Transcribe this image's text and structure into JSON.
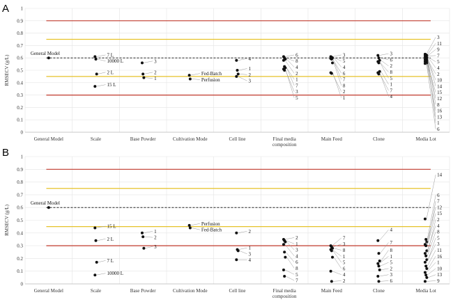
{
  "panel_labels": [
    "A",
    "B"
  ],
  "chart_data": [
    {
      "type": "scatter",
      "panel": "A",
      "ylabel": "RMSECV (g/L)",
      "ylim": [
        0,
        1
      ],
      "yticks": [
        "0",
        "0.1",
        "0.2",
        "0.3",
        "0.4",
        "0.5",
        "0.6",
        "0.7",
        "0.8",
        "0.9",
        "1"
      ],
      "categories": [
        "General Model",
        "Scale",
        "Base Powder",
        "Cultivation Mode",
        "Cell line",
        "Final media composition",
        "Main Feed",
        "Clone",
        "Media Lot"
      ],
      "reference_lines": [
        {
          "y": 0.9,
          "color": "#c0392b"
        },
        {
          "y": 0.75,
          "color": "#e6c229"
        },
        {
          "y": 0.45,
          "color": "#e6c229"
        },
        {
          "y": 0.3,
          "color": "#c0392b"
        },
        {
          "y": 0.6,
          "color": "#222222",
          "dashed": true,
          "label": "General Model"
        }
      ],
      "points": [
        {
          "cat": 0,
          "y": 0.6,
          "label": ""
        },
        {
          "cat": 1,
          "y": 0.61,
          "label": "7 L"
        },
        {
          "cat": 1,
          "y": 0.59,
          "label": "10000 L"
        },
        {
          "cat": 1,
          "y": 0.47,
          "label": "2 L"
        },
        {
          "cat": 1,
          "y": 0.37,
          "label": "15 L"
        },
        {
          "cat": 2,
          "y": 0.56,
          "label": "3"
        },
        {
          "cat": 2,
          "y": 0.47,
          "label": "2"
        },
        {
          "cat": 2,
          "y": 0.44,
          "label": "1"
        },
        {
          "cat": 3,
          "y": 0.46,
          "label": "Fed-Batch"
        },
        {
          "cat": 3,
          "y": 0.43,
          "label": "Perfusion"
        },
        {
          "cat": 4,
          "y": 0.58,
          "label": "4"
        },
        {
          "cat": 4,
          "y": 0.5,
          "label": "1"
        },
        {
          "cat": 4,
          "y": 0.47,
          "label": "2"
        },
        {
          "cat": 4,
          "y": 0.45,
          "label": "3"
        },
        {
          "cat": 5,
          "y": 0.61,
          "label": "6"
        },
        {
          "cat": 5,
          "y": 0.6,
          "label": "8"
        },
        {
          "cat": 5,
          "y": 0.59,
          "label": "4"
        },
        {
          "cat": 5,
          "y": 0.58,
          "label": "2"
        },
        {
          "cat": 5,
          "y": 0.53,
          "label": "1"
        },
        {
          "cat": 5,
          "y": 0.52,
          "label": "7"
        },
        {
          "cat": 5,
          "y": 0.51,
          "label": "3"
        },
        {
          "cat": 5,
          "y": 0.5,
          "label": "5"
        },
        {
          "cat": 6,
          "y": 0.61,
          "label": "3"
        },
        {
          "cat": 6,
          "y": 0.605,
          "label": "5"
        },
        {
          "cat": 6,
          "y": 0.6,
          "label": "4"
        },
        {
          "cat": 6,
          "y": 0.595,
          "label": "6"
        },
        {
          "cat": 6,
          "y": 0.59,
          "label": "7"
        },
        {
          "cat": 6,
          "y": 0.56,
          "label": "8"
        },
        {
          "cat": 6,
          "y": 0.48,
          "label": "2"
        },
        {
          "cat": 6,
          "y": 0.475,
          "label": "1"
        },
        {
          "cat": 7,
          "y": 0.62,
          "label": "3"
        },
        {
          "cat": 7,
          "y": 0.6,
          "label": "6"
        },
        {
          "cat": 7,
          "y": 0.58,
          "label": "2"
        },
        {
          "cat": 7,
          "y": 0.57,
          "label": "8"
        },
        {
          "cat": 7,
          "y": 0.56,
          "label": "5"
        },
        {
          "cat": 7,
          "y": 0.49,
          "label": "1"
        },
        {
          "cat": 7,
          "y": 0.48,
          "label": "7"
        },
        {
          "cat": 7,
          "y": 0.47,
          "label": "4"
        },
        {
          "cat": 8,
          "y": 0.63,
          "label": "3"
        },
        {
          "cat": 8,
          "y": 0.625,
          "label": "11"
        },
        {
          "cat": 8,
          "y": 0.62,
          "label": "9"
        },
        {
          "cat": 8,
          "y": 0.615,
          "label": "7"
        },
        {
          "cat": 8,
          "y": 0.61,
          "label": "5"
        },
        {
          "cat": 8,
          "y": 0.605,
          "label": "4"
        },
        {
          "cat": 8,
          "y": 0.6,
          "label": "2"
        },
        {
          "cat": 8,
          "y": 0.595,
          "label": "10"
        },
        {
          "cat": 8,
          "y": 0.59,
          "label": "14"
        },
        {
          "cat": 8,
          "y": 0.585,
          "label": "15"
        },
        {
          "cat": 8,
          "y": 0.58,
          "label": "12"
        },
        {
          "cat": 8,
          "y": 0.575,
          "label": "8"
        },
        {
          "cat": 8,
          "y": 0.57,
          "label": "16"
        },
        {
          "cat": 8,
          "y": 0.565,
          "label": "13"
        },
        {
          "cat": 8,
          "y": 0.56,
          "label": "1"
        },
        {
          "cat": 8,
          "y": 0.555,
          "label": "6"
        }
      ]
    },
    {
      "type": "scatter",
      "panel": "B",
      "ylabel": "RMSECV (g/L)",
      "ylim": [
        0,
        1
      ],
      "yticks": [
        "0",
        "0.1",
        "0.2",
        "0.3",
        "0.4",
        "0.5",
        "0.6",
        "0.7",
        "0.8",
        "0.9",
        "1"
      ],
      "categories": [
        "General Model",
        "Scale",
        "Base Powder",
        "Cultivation Mode",
        "Cell line",
        "Final media composition",
        "Main Feed",
        "Clone",
        "Media Lot"
      ],
      "reference_lines": [
        {
          "y": 0.9,
          "color": "#c0392b"
        },
        {
          "y": 0.75,
          "color": "#e6c229"
        },
        {
          "y": 0.45,
          "color": "#e6c229"
        },
        {
          "y": 0.3,
          "color": "#c0392b"
        },
        {
          "y": 0.6,
          "color": "#222222",
          "dashed": true,
          "label": "General Model"
        }
      ],
      "points": [
        {
          "cat": 0,
          "y": 0.6,
          "label": ""
        },
        {
          "cat": 1,
          "y": 0.44,
          "label": "15 L"
        },
        {
          "cat": 1,
          "y": 0.34,
          "label": "2 L"
        },
        {
          "cat": 1,
          "y": 0.17,
          "label": "7 L"
        },
        {
          "cat": 1,
          "y": 0.07,
          "label": "10000 L"
        },
        {
          "cat": 2,
          "y": 0.4,
          "label": "1"
        },
        {
          "cat": 2,
          "y": 0.37,
          "label": "2"
        },
        {
          "cat": 2,
          "y": 0.28,
          "label": "3"
        },
        {
          "cat": 3,
          "y": 0.46,
          "label": "Perfusion"
        },
        {
          "cat": 3,
          "y": 0.44,
          "label": "Fed-Batch"
        },
        {
          "cat": 4,
          "y": 0.4,
          "label": "2"
        },
        {
          "cat": 4,
          "y": 0.27,
          "label": "1"
        },
        {
          "cat": 4,
          "y": 0.26,
          "label": "3"
        },
        {
          "cat": 4,
          "y": 0.19,
          "label": "4"
        },
        {
          "cat": 5,
          "y": 0.35,
          "label": "2"
        },
        {
          "cat": 5,
          "y": 0.34,
          "label": "1"
        },
        {
          "cat": 5,
          "y": 0.33,
          "label": "3"
        },
        {
          "cat": 5,
          "y": 0.31,
          "label": "4"
        },
        {
          "cat": 5,
          "y": 0.25,
          "label": "6"
        },
        {
          "cat": 5,
          "y": 0.21,
          "label": "8"
        },
        {
          "cat": 5,
          "y": 0.11,
          "label": "5"
        },
        {
          "cat": 5,
          "y": 0.06,
          "label": "7"
        },
        {
          "cat": 6,
          "y": 0.3,
          "label": "7"
        },
        {
          "cat": 6,
          "y": 0.29,
          "label": "3"
        },
        {
          "cat": 6,
          "y": 0.28,
          "label": "8"
        },
        {
          "cat": 6,
          "y": 0.27,
          "label": "1"
        },
        {
          "cat": 6,
          "y": 0.26,
          "label": "5"
        },
        {
          "cat": 6,
          "y": 0.21,
          "label": "6"
        },
        {
          "cat": 6,
          "y": 0.1,
          "label": "4"
        },
        {
          "cat": 6,
          "y": 0.02,
          "label": "2"
        },
        {
          "cat": 7,
          "y": 0.34,
          "label": "4"
        },
        {
          "cat": 7,
          "y": 0.24,
          "label": "7"
        },
        {
          "cat": 7,
          "y": 0.18,
          "label": "8"
        },
        {
          "cat": 7,
          "y": 0.16,
          "label": "1"
        },
        {
          "cat": 7,
          "y": 0.14,
          "label": "5"
        },
        {
          "cat": 7,
          "y": 0.11,
          "label": "2"
        },
        {
          "cat": 7,
          "y": 0.06,
          "label": "3"
        },
        {
          "cat": 7,
          "y": 0.02,
          "label": "6"
        },
        {
          "cat": 8,
          "y": 0.51,
          "label": "14"
        },
        {
          "cat": 8,
          "y": 0.35,
          "label": "6"
        },
        {
          "cat": 8,
          "y": 0.33,
          "label": "7"
        },
        {
          "cat": 8,
          "y": 0.31,
          "label": "12"
        },
        {
          "cat": 8,
          "y": 0.3,
          "label": "15"
        },
        {
          "cat": 8,
          "y": 0.26,
          "label": "2"
        },
        {
          "cat": 8,
          "y": 0.24,
          "label": "4"
        },
        {
          "cat": 8,
          "y": 0.22,
          "label": "8"
        },
        {
          "cat": 8,
          "y": 0.19,
          "label": "5"
        },
        {
          "cat": 8,
          "y": 0.17,
          "label": "3"
        },
        {
          "cat": 8,
          "y": 0.14,
          "label": "11"
        },
        {
          "cat": 8,
          "y": 0.12,
          "label": "16"
        },
        {
          "cat": 8,
          "y": 0.09,
          "label": "1"
        },
        {
          "cat": 8,
          "y": 0.07,
          "label": "10"
        },
        {
          "cat": 8,
          "y": 0.05,
          "label": "13"
        },
        {
          "cat": 8,
          "y": 0.02,
          "label": "9"
        }
      ]
    }
  ]
}
